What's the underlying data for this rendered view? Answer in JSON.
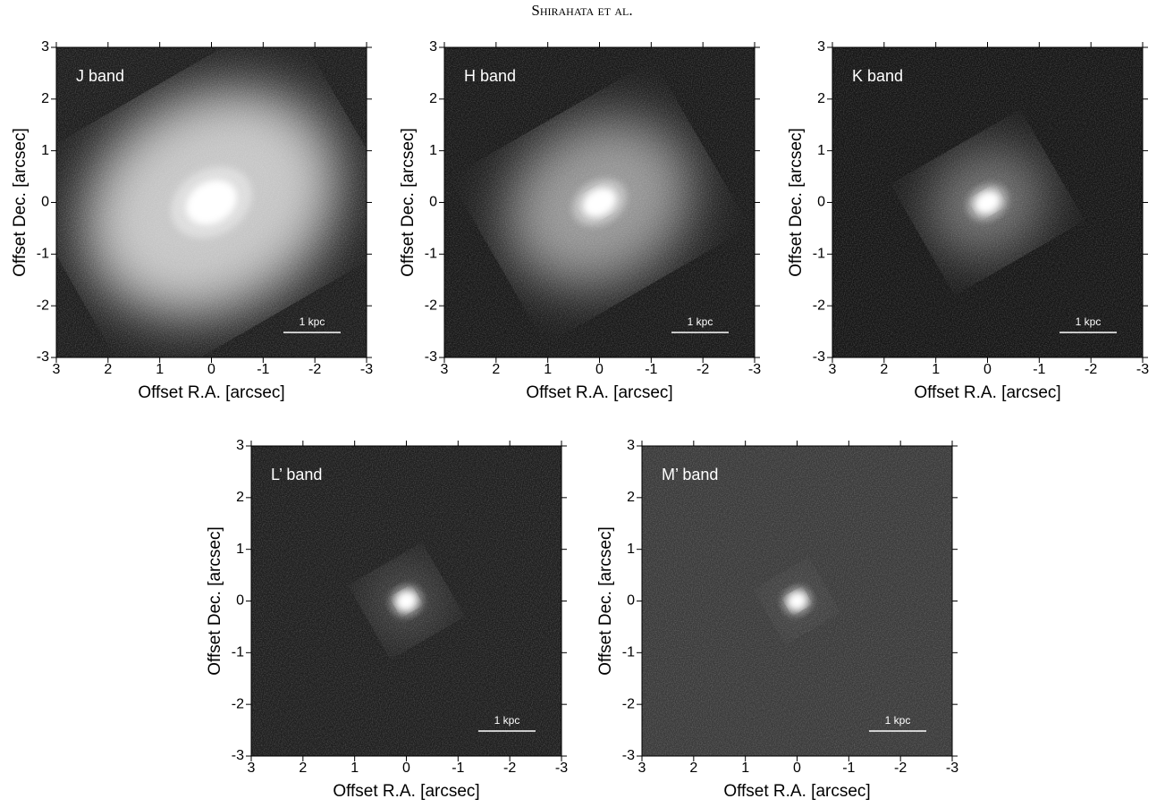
{
  "header": "Shirahata et al.",
  "chart_data": [
    {
      "type": "image",
      "label": "J band",
      "xlabel": "Offset R.A. [arcsec]",
      "ylabel": "Offset Dec. [arcsec]",
      "xlim": [
        3,
        -3
      ],
      "ylim": [
        -3,
        3
      ],
      "xticks": [
        3,
        2,
        1,
        0,
        -1,
        -2,
        -3
      ],
      "yticks": [
        -3,
        -2,
        -1,
        0,
        1,
        2,
        3
      ],
      "scale_label": "1 kpc"
    },
    {
      "type": "image",
      "label": "H band",
      "xlabel": "Offset R.A. [arcsec]",
      "ylabel": "Offset Dec. [arcsec]",
      "xlim": [
        3,
        -3
      ],
      "ylim": [
        -3,
        3
      ],
      "xticks": [
        3,
        2,
        1,
        0,
        -1,
        -2,
        -3
      ],
      "yticks": [
        -3,
        -2,
        -1,
        0,
        1,
        2,
        3
      ],
      "scale_label": "1 kpc"
    },
    {
      "type": "image",
      "label": "K band",
      "xlabel": "Offset R.A. [arcsec]",
      "ylabel": "Offset Dec. [arcsec]",
      "xlim": [
        3,
        -3
      ],
      "ylim": [
        -3,
        3
      ],
      "xticks": [
        3,
        2,
        1,
        0,
        -1,
        -2,
        -3
      ],
      "yticks": [
        -3,
        -2,
        -1,
        0,
        1,
        2,
        3
      ],
      "scale_label": "1 kpc"
    },
    {
      "type": "image",
      "label": "L’ band",
      "xlabel": "Offset R.A. [arcsec]",
      "ylabel": "Offset Dec. [arcsec]",
      "xlim": [
        3,
        -3
      ],
      "ylim": [
        -3,
        3
      ],
      "xticks": [
        3,
        2,
        1,
        0,
        -1,
        -2,
        -3
      ],
      "yticks": [
        -3,
        -2,
        -1,
        0,
        1,
        2,
        3
      ],
      "scale_label": "1 kpc"
    },
    {
      "type": "image",
      "label": "M’ band",
      "xlabel": "Offset R.A. [arcsec]",
      "ylabel": "Offset Dec. [arcsec]",
      "xlim": [
        3,
        -3
      ],
      "ylim": [
        -3,
        3
      ],
      "xticks": [
        3,
        2,
        1,
        0,
        -1,
        -2,
        -3
      ],
      "yticks": [
        -3,
        -2,
        -1,
        0,
        1,
        2,
        3
      ],
      "scale_label": "1 kpc"
    }
  ]
}
